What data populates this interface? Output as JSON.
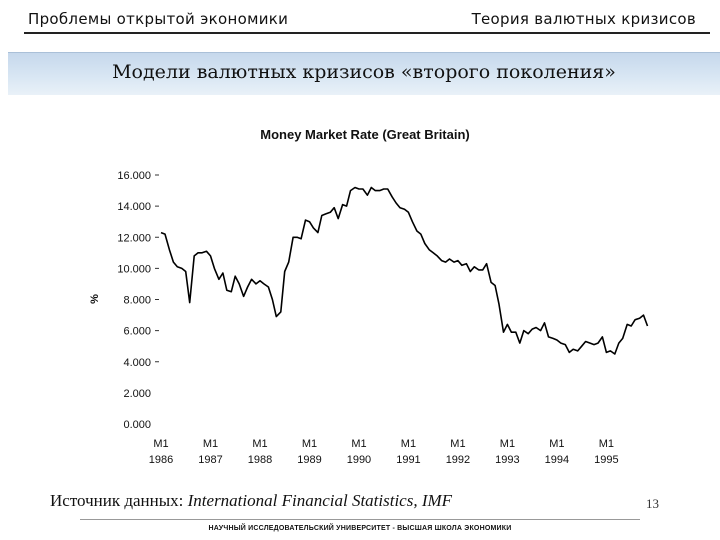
{
  "header": {
    "left_title": "Проблемы открытой экономики",
    "right_title": "Теория валютных кризисов"
  },
  "slide": {
    "title": "Модели валютных кризисов «второго поколения»",
    "source_prefix": "Источник данных: ",
    "source_name": "International Financial Statistics, IMF",
    "page_number": "13",
    "footer": "НАУЧНЫЙ ИССЛЕДОВАТЕЛЬСКИЙ УНИВЕРСИТЕТ - ВЫСШАЯ ШКОЛА ЭКОНОМИКИ"
  },
  "chart_data": {
    "type": "line",
    "title": "Money Market Rate (Great Britain)",
    "xlabel": "",
    "ylabel": "%",
    "ylim": [
      0,
      16
    ],
    "xlim": [
      1986.0,
      1995.8
    ],
    "y_ticks": [
      "0.000",
      "2.000",
      "4.000",
      "6.000",
      "8.000",
      "10.000",
      "12.000",
      "14.000",
      "16.000"
    ],
    "x_ticks": [
      {
        "top": "M1",
        "bottom": "1986"
      },
      {
        "top": "M1",
        "bottom": "1987"
      },
      {
        "top": "M1",
        "bottom": "1988"
      },
      {
        "top": "M1",
        "bottom": "1989"
      },
      {
        "top": "M1",
        "bottom": "1990"
      },
      {
        "top": "M1",
        "bottom": "1991"
      },
      {
        "top": "M1",
        "bottom": "1992"
      },
      {
        "top": "M1",
        "bottom": "1993"
      },
      {
        "top": "M1",
        "bottom": "1994"
      },
      {
        "top": "M1",
        "bottom": "1995"
      }
    ],
    "grid": false,
    "line_color": "#000000",
    "series": [
      {
        "x": [
          1986.0,
          1986.08,
          1986.17,
          1986.25,
          1986.33,
          1986.42,
          1986.5,
          1986.58,
          1986.67,
          1986.75,
          1986.83,
          1986.92,
          1987.0,
          1987.08,
          1987.17,
          1987.25,
          1987.33,
          1987.42,
          1987.5,
          1987.58,
          1987.67,
          1987.75,
          1987.83,
          1987.92,
          1988.0,
          1988.08,
          1988.17,
          1988.25,
          1988.33,
          1988.42,
          1988.5,
          1988.58,
          1988.67,
          1988.75,
          1988.83,
          1988.92,
          1989.0,
          1989.08,
          1989.17,
          1989.25,
          1989.33,
          1989.42,
          1989.5,
          1989.58,
          1989.67,
          1989.75,
          1989.83,
          1989.92,
          1990.0,
          1990.08,
          1990.17,
          1990.25,
          1990.33,
          1990.42,
          1990.5,
          1990.58,
          1990.67,
          1990.75,
          1990.83,
          1990.92,
          1991.0,
          1991.08,
          1991.17,
          1991.25,
          1991.33,
          1991.42,
          1991.5,
          1991.58,
          1991.67,
          1991.75,
          1991.83,
          1991.92,
          1992.0,
          1992.08,
          1992.17,
          1992.25,
          1992.33,
          1992.42,
          1992.5,
          1992.58,
          1992.67,
          1992.75,
          1992.83,
          1992.92,
          1993.0,
          1993.08,
          1993.17,
          1993.25,
          1993.33,
          1993.42,
          1993.5,
          1993.58,
          1993.67,
          1993.75,
          1993.83,
          1993.92,
          1994.0,
          1994.08,
          1994.17,
          1994.25,
          1994.33,
          1994.42,
          1994.5,
          1994.58,
          1994.67,
          1994.75,
          1994.83,
          1994.92,
          1995.0,
          1995.08,
          1995.17,
          1995.25,
          1995.33,
          1995.42,
          1995.5,
          1995.58,
          1995.67,
          1995.75,
          1995.83
        ],
        "values": [
          12.3,
          12.2,
          11.2,
          10.4,
          10.1,
          10.0,
          9.8,
          7.8,
          10.8,
          11.0,
          11.0,
          11.1,
          10.8,
          10.0,
          9.3,
          9.7,
          8.6,
          8.5,
          9.5,
          9.0,
          8.2,
          8.8,
          9.3,
          9.0,
          9.2,
          9.0,
          8.8,
          8.0,
          6.9,
          7.2,
          9.8,
          10.4,
          12.0,
          12.0,
          11.9,
          13.1,
          13.0,
          12.6,
          12.3,
          13.4,
          13.5,
          13.6,
          13.9,
          13.2,
          14.1,
          14.0,
          15.0,
          15.2,
          15.1,
          15.1,
          14.7,
          15.2,
          15.0,
          15.0,
          15.1,
          15.1,
          14.6,
          14.2,
          13.9,
          13.8,
          13.6,
          13.0,
          12.4,
          12.2,
          11.6,
          11.2,
          11.0,
          10.8,
          10.5,
          10.4,
          10.6,
          10.4,
          10.5,
          10.2,
          10.3,
          9.8,
          10.1,
          9.9,
          9.9,
          10.3,
          9.1,
          8.9,
          7.7,
          5.9,
          6.4,
          5.9,
          5.9,
          5.2,
          6.0,
          5.8,
          6.1,
          6.2,
          6.0,
          6.5,
          5.6,
          5.5,
          5.4,
          5.2,
          5.1,
          4.6,
          4.8,
          4.7,
          5.0,
          5.3,
          5.2,
          5.1,
          5.2,
          5.6,
          4.6,
          4.7,
          4.5,
          5.2,
          5.5,
          6.4,
          6.3,
          6.7,
          6.8,
          7.0,
          6.3
        ]
      }
    ]
  }
}
